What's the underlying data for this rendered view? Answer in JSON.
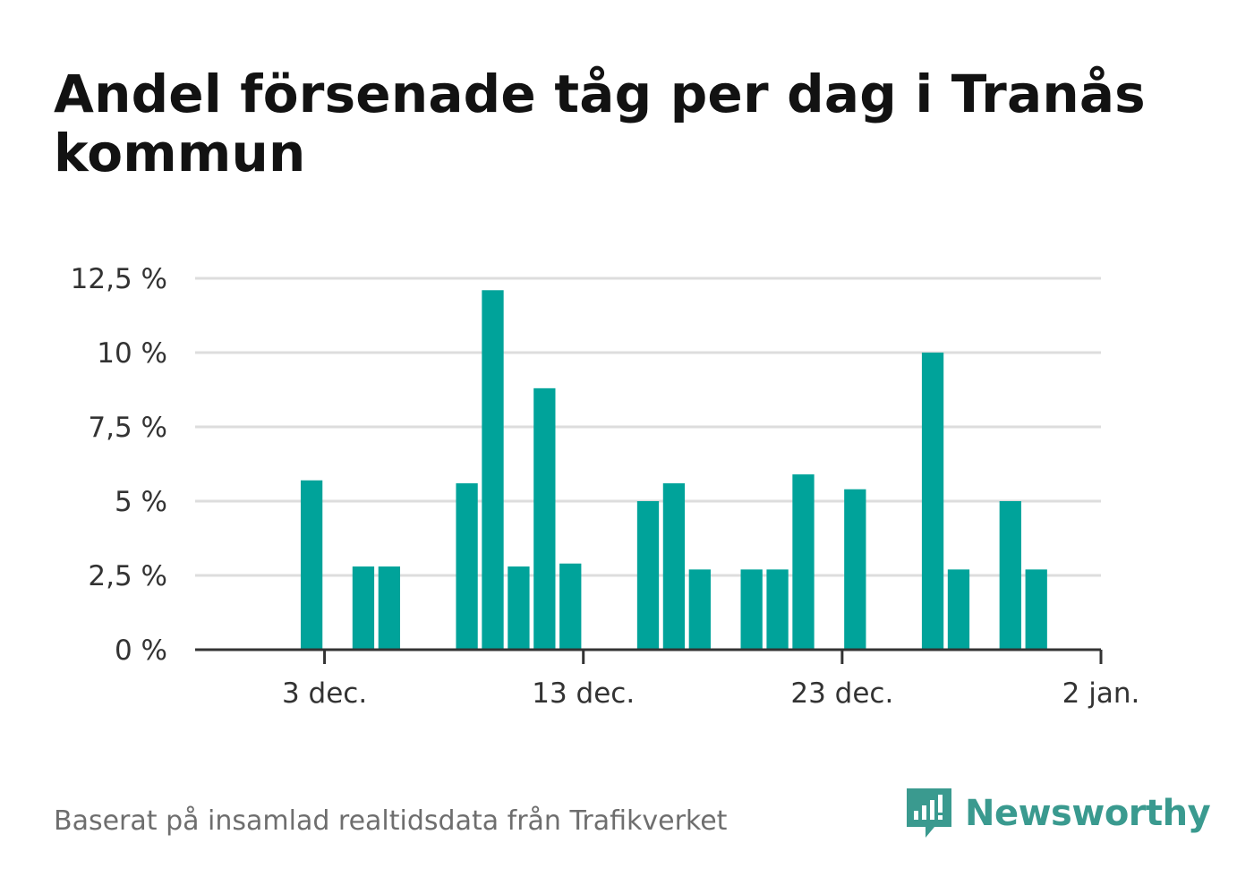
{
  "title": "Andel försenade tåg per dag i Tranås kommun",
  "footer": {
    "source": "Baserat på insamlad realtidsdata från Trafikverket",
    "brand": "Newsworthy"
  },
  "colors": {
    "bar": "#00a39a",
    "grid": "#dddddd",
    "axis": "#333333",
    "brand": "#3a9a8f"
  },
  "icons": {
    "brand": "newsworthy-logo-icon"
  },
  "chart_data": {
    "type": "bar",
    "x_axis": {
      "type": "date",
      "min": "2019-11-28",
      "max": "2020-01-02",
      "ticks": [
        {
          "date": "2019-12-03",
          "label": "3 dec."
        },
        {
          "date": "2019-12-13",
          "label": "13 dec."
        },
        {
          "date": "2019-12-23",
          "label": "23 dec."
        },
        {
          "date": "2020-01-02",
          "label": "2 jan."
        }
      ]
    },
    "y_axis": {
      "min": 0,
      "max": 12.5,
      "unit": "%",
      "ticks": [
        {
          "value": 0,
          "label": "0 %"
        },
        {
          "value": 2.5,
          "label": "2,5 %"
        },
        {
          "value": 5,
          "label": "5 %"
        },
        {
          "value": 7.5,
          "label": "7,5 %"
        },
        {
          "value": 10,
          "label": "10 %"
        },
        {
          "value": 12.5,
          "label": "12,5 %"
        }
      ]
    },
    "grid": true,
    "legend": "none",
    "points": [
      {
        "date": "2019-12-02",
        "value": 5.7
      },
      {
        "date": "2019-12-03",
        "value": 0
      },
      {
        "date": "2019-12-04",
        "value": 2.8
      },
      {
        "date": "2019-12-05",
        "value": 2.8
      },
      {
        "date": "2019-12-06",
        "value": 0
      },
      {
        "date": "2019-12-07",
        "value": 0
      },
      {
        "date": "2019-12-08",
        "value": 5.6
      },
      {
        "date": "2019-12-09",
        "value": 12.1
      },
      {
        "date": "2019-12-10",
        "value": 2.8
      },
      {
        "date": "2019-12-11",
        "value": 8.8
      },
      {
        "date": "2019-12-12",
        "value": 2.9
      },
      {
        "date": "2019-12-13",
        "value": 0
      },
      {
        "date": "2019-12-14",
        "value": 0
      },
      {
        "date": "2019-12-15",
        "value": 5.0
      },
      {
        "date": "2019-12-16",
        "value": 5.6
      },
      {
        "date": "2019-12-17",
        "value": 2.7
      },
      {
        "date": "2019-12-18",
        "value": 0
      },
      {
        "date": "2019-12-19",
        "value": 2.7
      },
      {
        "date": "2019-12-20",
        "value": 2.7
      },
      {
        "date": "2019-12-21",
        "value": 5.9
      },
      {
        "date": "2019-12-22",
        "value": 0
      },
      {
        "date": "2019-12-23",
        "value": 5.4
      },
      {
        "date": "2019-12-24",
        "value": 0
      },
      {
        "date": "2019-12-25",
        "value": 0
      },
      {
        "date": "2019-12-26",
        "value": 10.0
      },
      {
        "date": "2019-12-27",
        "value": 2.7
      },
      {
        "date": "2019-12-28",
        "value": 0
      },
      {
        "date": "2019-12-29",
        "value": 5.0
      },
      {
        "date": "2019-12-30",
        "value": 2.7
      }
    ]
  }
}
